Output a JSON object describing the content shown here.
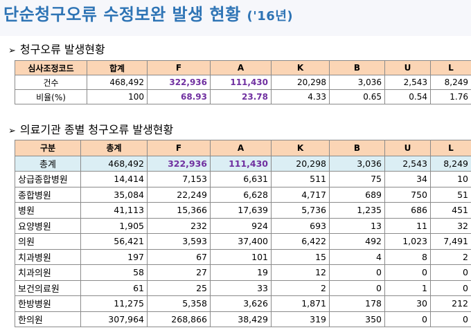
{
  "title": {
    "main": "단순청구오류  수정보완  발생  현황",
    "year": "('16년)"
  },
  "section1": {
    "bullet": "➢",
    "heading": "청구오류 발생현황"
  },
  "table1": {
    "headers": [
      "심사조정코드",
      "합계",
      "F",
      "A",
      "K",
      "B",
      "U",
      "L"
    ],
    "rows": [
      [
        "건수",
        "468,492",
        "322,936",
        "111,430",
        "20,298",
        "3,036",
        "2,543",
        "8,249"
      ],
      [
        "비율(%)",
        "100",
        "68.93",
        "23.78",
        "4.33",
        "0.65",
        "0.54",
        "1.76"
      ]
    ]
  },
  "section2": {
    "bullet": "➢",
    "heading": "의료기관 종별 청구오류 발생현황"
  },
  "table2": {
    "headers": [
      "구분",
      "총계",
      "F",
      "A",
      "K",
      "B",
      "U",
      "L"
    ],
    "total": [
      "총계",
      "468,492",
      "322,936",
      "111,430",
      "20,298",
      "3,036",
      "2,543",
      "8,249"
    ],
    "rows": [
      [
        "상급종합병원",
        "14,414",
        "7,153",
        "6,631",
        "511",
        "75",
        "34",
        "10"
      ],
      [
        "종합병원",
        "35,084",
        "22,249",
        "6,628",
        "4,717",
        "689",
        "750",
        "51"
      ],
      [
        "병원",
        "41,113",
        "15,366",
        "17,639",
        "5,736",
        "1,235",
        "686",
        "451"
      ],
      [
        "요양병원",
        "1,905",
        "232",
        "924",
        "693",
        "13",
        "11",
        "32"
      ],
      [
        "의원",
        "56,421",
        "3,593",
        "37,400",
        "6,422",
        "492",
        "1,023",
        "7,491"
      ],
      [
        "치과병원",
        "197",
        "67",
        "101",
        "15",
        "4",
        "8",
        "2"
      ],
      [
        "치과의원",
        "58",
        "27",
        "19",
        "12",
        "0",
        "0",
        "0"
      ],
      [
        "보건의료원",
        "61",
        "25",
        "33",
        "2",
        "0",
        "1",
        "0"
      ],
      [
        "한방병원",
        "11,275",
        "5,358",
        "3,626",
        "1,871",
        "178",
        "30",
        "212"
      ],
      [
        "한의원",
        "307,964",
        "268,866",
        "38,429",
        "319",
        "350",
        "0",
        "0"
      ]
    ]
  }
}
